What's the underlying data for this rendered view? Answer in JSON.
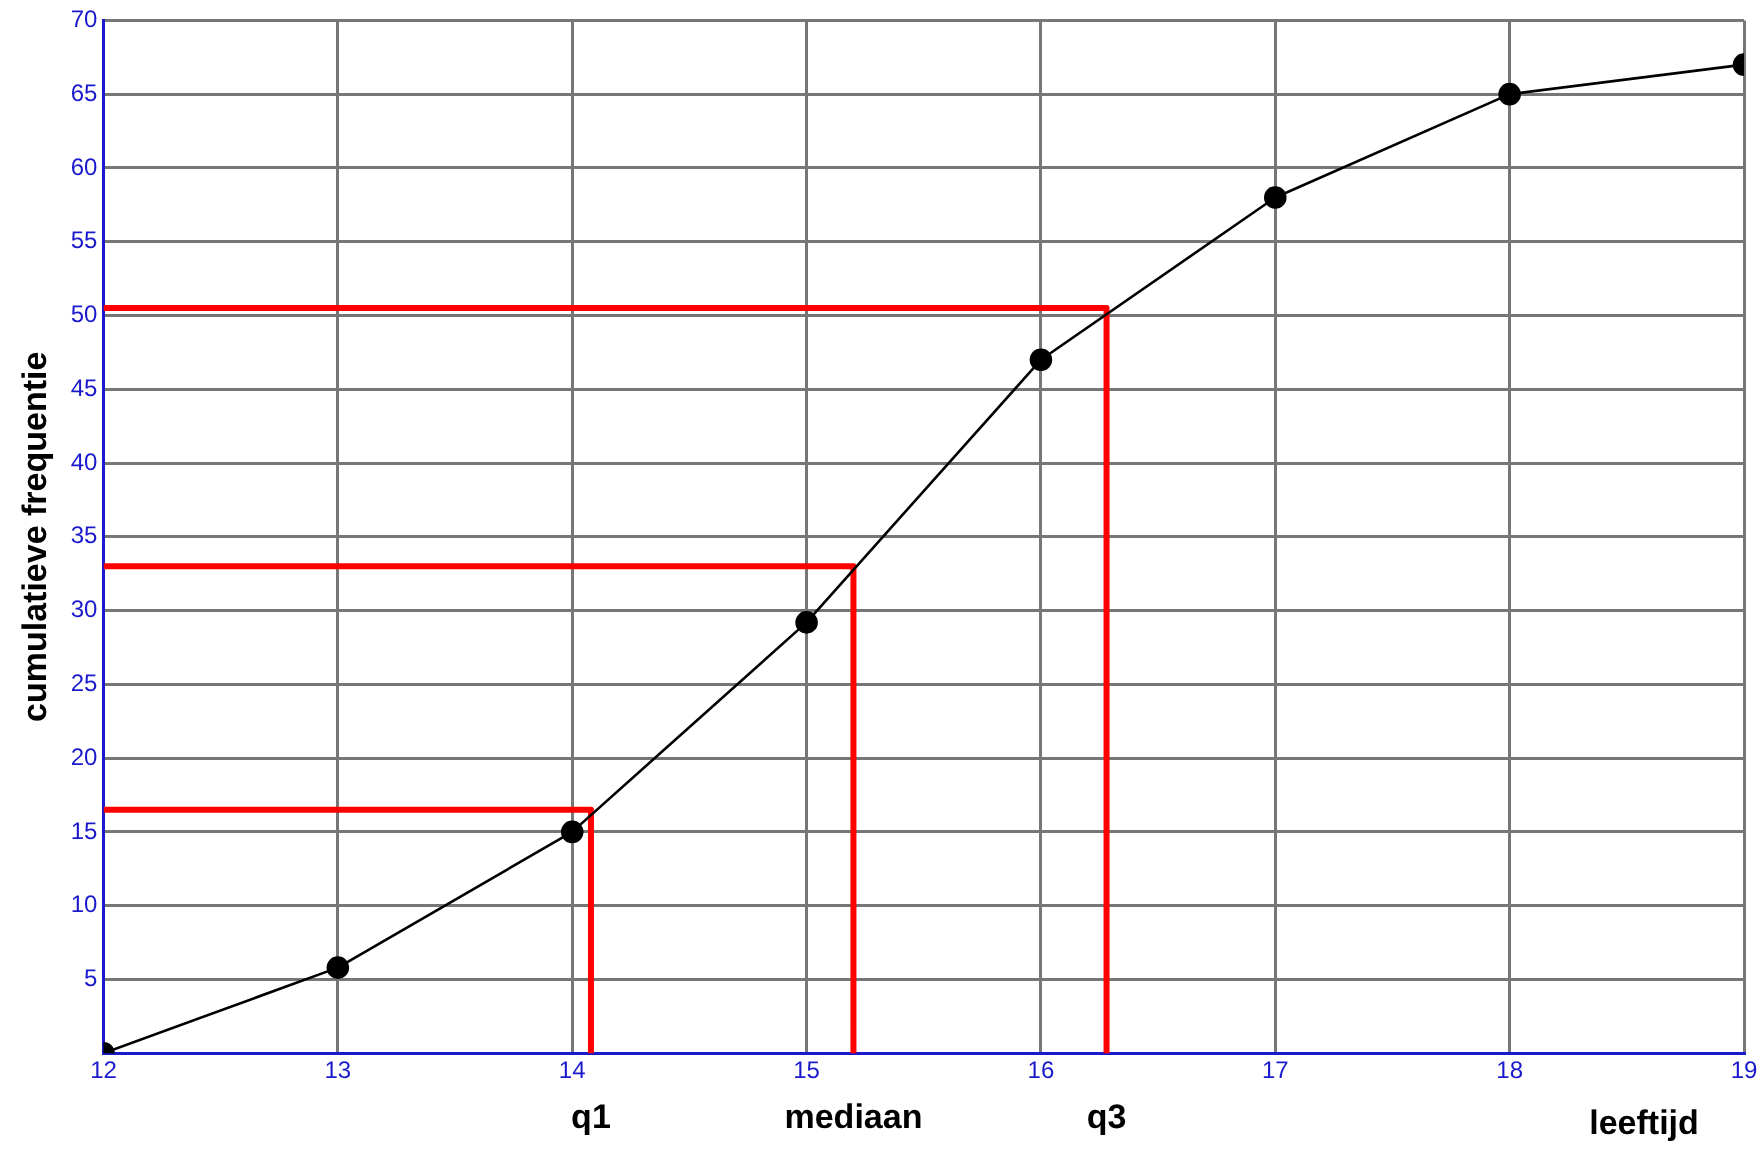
{
  "chart_data": {
    "type": "line",
    "xlabel": "leeftijd",
    "ylabel": "cumulatieve frequentie",
    "xlim": [
      12,
      19
    ],
    "xticks": [
      12,
      13,
      14,
      15,
      16,
      17,
      18,
      19
    ],
    "ylim": [
      0,
      70
    ],
    "yticks": [
      {
        "value": 0,
        "label": null
      },
      5,
      10,
      15,
      20,
      25,
      30,
      35,
      40,
      45,
      50,
      55,
      60,
      65,
      70
    ],
    "grid": true,
    "legend": false,
    "series": [
      {
        "type": "line",
        "color": "#000000",
        "marker": "circle",
        "x": [
          12,
          13,
          14,
          15,
          16,
          17,
          18,
          19
        ],
        "values": [
          0,
          5.8,
          15,
          29.2,
          47,
          58,
          65,
          67
        ]
      },
      {
        "type": "line",
        "color": "#ff0000",
        "marker": "none",
        "x": [
          12,
          14.08,
          14.08
        ],
        "values": [
          16.5,
          16.5,
          0
        ]
      },
      {
        "type": "line",
        "color": "#ff0000",
        "marker": "none",
        "x": [
          12,
          15.2,
          15.2
        ],
        "values": [
          33,
          33,
          0
        ]
      },
      {
        "type": "line",
        "color": "#ff0000",
        "marker": "none",
        "x": [
          12,
          16.28,
          16.28
        ],
        "values": [
          50.5,
          50.5,
          0
        ]
      }
    ],
    "annotations": [
      {
        "text": "q1",
        "x": 14.08,
        "y": 0
      },
      {
        "text": "mediaan",
        "x": 15.2,
        "y": 0
      },
      {
        "text": "q3",
        "x": 16.28,
        "y": 0
      }
    ]
  }
}
